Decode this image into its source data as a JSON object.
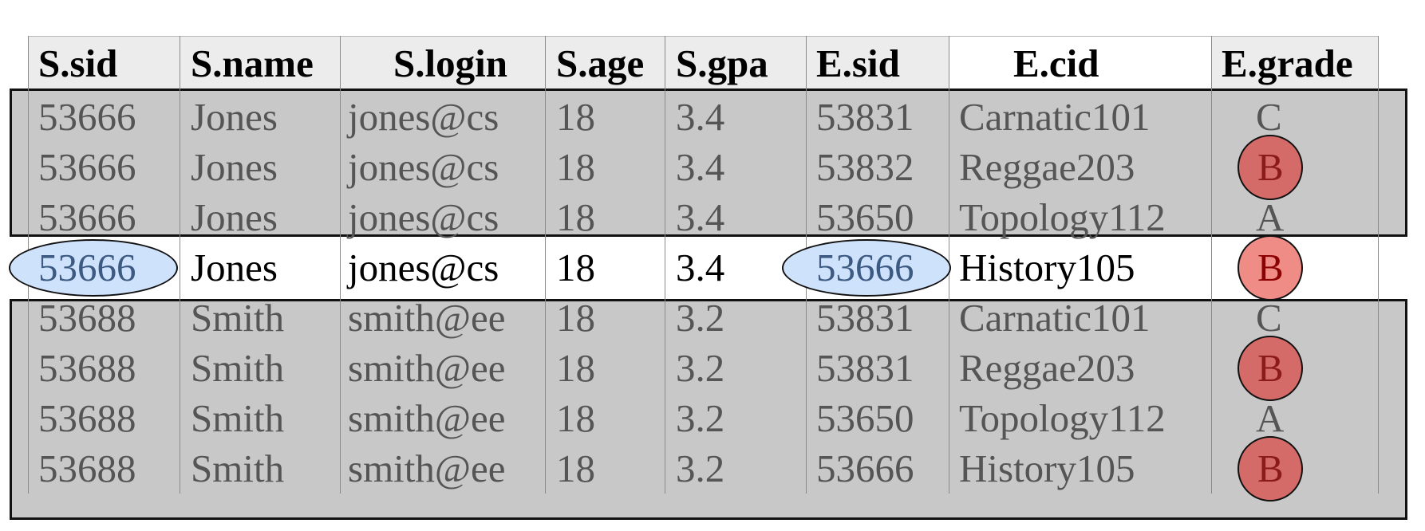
{
  "table": {
    "columns": [
      "S.sid",
      "S.name",
      "S.login",
      "S.age",
      "S.gpa",
      "E.sid",
      "E.cid",
      "E.grade"
    ],
    "rows": [
      [
        "53666",
        "Jones",
        "jones@cs",
        "18",
        "3.4",
        "53831",
        "Carnatic101",
        "C"
      ],
      [
        "53666",
        "Jones",
        "jones@cs",
        "18",
        "3.4",
        "53832",
        "Reggae203",
        "B"
      ],
      [
        "53666",
        "Jones",
        "jones@cs",
        "18",
        "3.4",
        "53650",
        "Topology112",
        "A"
      ],
      [
        "53666",
        "Jones",
        "jones@cs",
        "18",
        "3.4",
        "53666",
        "History105",
        "B"
      ],
      [
        "53688",
        "Smith",
        "smith@ee",
        "18",
        "3.2",
        "53831",
        "Carnatic101",
        "C"
      ],
      [
        "53688",
        "Smith",
        "smith@ee",
        "18",
        "3.2",
        "53831",
        "Reggae203",
        "B"
      ],
      [
        "53688",
        "Smith",
        "smith@ee",
        "18",
        "3.2",
        "53650",
        "Topology112",
        "A"
      ],
      [
        "53688",
        "Smith",
        "smith@ee",
        "18",
        "3.2",
        "53666",
        "History105",
        "B"
      ]
    ],
    "highlighted_row": 3,
    "circled_grade": "B"
  },
  "colors": {
    "header_bg": "#ececec",
    "shaded_band": "#c8c8c8",
    "match_oval": "#cfe2fb",
    "grade_circle": "#d56b68",
    "grade_circle_highlight": "#f08c86"
  }
}
